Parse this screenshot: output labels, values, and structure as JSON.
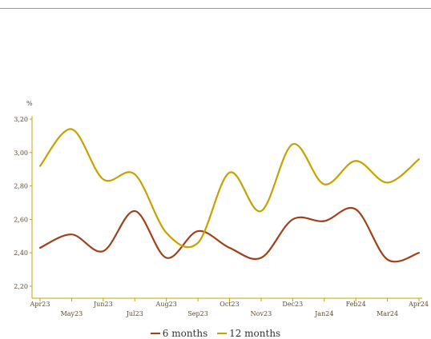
{
  "chart_data": {
    "type": "line",
    "unit_label": "%",
    "x": [
      "Apr23",
      "May23",
      "Jun23",
      "Jul23",
      "Aug23",
      "Sep23",
      "Oct23",
      "Nov23",
      "Dec23",
      "Jan24",
      "Feb24",
      "Mar24",
      "Apr24"
    ],
    "ylim": [
      2.2,
      3.2
    ],
    "yticks": [
      "2,20",
      "2,40",
      "2,60",
      "2,80",
      "3,00",
      "3,20"
    ],
    "ytick_values": [
      2.2,
      2.4,
      2.6,
      2.8,
      3.0,
      3.2
    ],
    "grid": false,
    "legend_position": "bottom",
    "series": [
      {
        "name": "6 months",
        "color": "#a0401a",
        "values": [
          2.43,
          2.51,
          2.41,
          2.65,
          2.37,
          2.53,
          2.43,
          2.37,
          2.6,
          2.59,
          2.66,
          2.36,
          2.4
        ]
      },
      {
        "name": "12 months",
        "color": "#c8a000",
        "values": [
          2.92,
          3.14,
          2.84,
          2.87,
          2.52,
          2.46,
          2.88,
          2.65,
          3.05,
          2.81,
          2.95,
          2.82,
          2.96
        ]
      }
    ]
  },
  "colors": {
    "axis": "#c8a000",
    "text": "#5a4a30"
  }
}
